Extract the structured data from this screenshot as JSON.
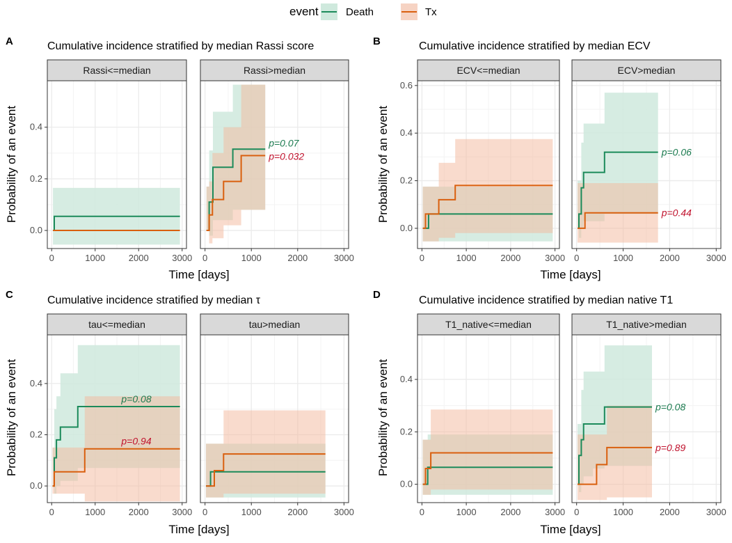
{
  "legend": {
    "title": "event",
    "items": [
      {
        "name": "Death",
        "color": "#1b8a5a",
        "fill": "#cfe9dd"
      },
      {
        "name": "Tx",
        "color": "#d95f0e",
        "fill": "#f6d3c3"
      }
    ]
  },
  "colors": {
    "death_line": "#1b8a5a",
    "tx_line": "#d95f0e",
    "death_p": "#1b7a4f",
    "tx_p": "#c0122d",
    "strip": "#d9d9d9",
    "grid": "#ebebeb"
  },
  "chart_data": [
    {
      "type": "line",
      "label": "A",
      "title": "Cumulative incidence stratified by median Rassi score",
      "xlabel": "Time [days]",
      "ylabel": "Probability of an event",
      "xlim": [
        -100,
        3100
      ],
      "ylim": [
        -0.07,
        0.58
      ],
      "xticks": [
        0,
        1000,
        2000,
        3000
      ],
      "yticks": [
        0.0,
        0.2,
        0.4
      ],
      "facets": [
        {
          "strip": "Rassi<=median",
          "death": {
            "x": [
              30,
              60,
              2950
            ],
            "y": [
              0,
              0.055,
              0.055
            ],
            "lo": [
              -0.055,
              -0.055,
              -0.055
            ],
            "hi": [
              0.165,
              0.165,
              0.165
            ]
          },
          "tx": {
            "x": [
              30,
              2950
            ],
            "y": [
              0,
              0
            ],
            "lo": [
              0,
              0
            ],
            "hi": [
              0,
              0
            ]
          }
        },
        {
          "strip": "Rassi>median",
          "death": {
            "x": [
              30,
              90,
              140,
              170,
              600,
              1300
            ],
            "y": [
              0,
              0.11,
              0.11,
              0.245,
              0.315,
              0.315
            ],
            "lo": [
              0,
              -0.02,
              -0.02,
              0.04,
              0.08,
              0.08
            ],
            "hi": [
              0.17,
              0.31,
              0.31,
              0.46,
              0.565,
              0.565
            ]
          },
          "tx": {
            "x": [
              30,
              90,
              160,
              400,
              780,
              1300
            ],
            "y": [
              0,
              0.06,
              0.12,
              0.19,
              0.29,
              0.29
            ],
            "lo": [
              0,
              -0.05,
              -0.03,
              0.02,
              0.08,
              0.08
            ],
            "hi": [
              0.17,
              0.19,
              0.3,
              0.4,
              0.565,
              0.565
            ]
          },
          "pvals": {
            "death": "p=0.07",
            "tx": "p=0.032"
          }
        }
      ]
    },
    {
      "type": "line",
      "label": "B",
      "title": "Cumulative incidence stratified by median ECV",
      "xlabel": "Time [days]",
      "ylabel": "Probability of an event",
      "xlim": [
        -100,
        3100
      ],
      "ylim": [
        -0.085,
        0.62
      ],
      "xticks": [
        0,
        1000,
        2000,
        3000
      ],
      "yticks": [
        0.0,
        0.2,
        0.4,
        0.6
      ],
      "facets": [
        {
          "strip": "ECV<=median",
          "death": {
            "x": [
              20,
              150,
              2950
            ],
            "y": [
              0,
              0.06,
              0.06
            ],
            "lo": [
              -0.055,
              -0.055,
              -0.055
            ],
            "hi": [
              0.175,
              0.175,
              0.175
            ]
          },
          "tx": {
            "x": [
              20,
              80,
              380,
              750,
              2950
            ],
            "y": [
              0,
              0.06,
              0.12,
              0.18,
              0.18
            ],
            "lo": [
              -0.055,
              -0.055,
              -0.04,
              -0.02,
              -0.02
            ],
            "hi": [
              0.175,
              0.175,
              0.275,
              0.375,
              0.375
            ]
          }
        },
        {
          "strip": "ECV>median",
          "death": {
            "x": [
              20,
              50,
              100,
              150,
              600,
              1750
            ],
            "y": [
              0,
              0.06,
              0.17,
              0.235,
              0.32,
              0.32
            ],
            "lo": [
              0,
              -0.04,
              0.0,
              0.03,
              0.06,
              0.06
            ],
            "hi": [
              0.2,
              0.2,
              0.36,
              0.44,
              0.57,
              0.57
            ]
          },
          "tx": {
            "x": [
              20,
              180,
              1750
            ],
            "y": [
              0,
              0.065,
              0.065
            ],
            "lo": [
              -0.06,
              -0.06,
              -0.06
            ],
            "hi": [
              0.19,
              0.19,
              0.19
            ]
          },
          "pvals": {
            "death": "p=0.06",
            "tx": "p=0.44"
          }
        }
      ]
    },
    {
      "type": "line",
      "label": "C",
      "title": "Cumulative incidence stratified by median τ",
      "xlabel": "Time [days]",
      "ylabel": "Probability of an event",
      "xlim": [
        -100,
        3100
      ],
      "ylim": [
        -0.065,
        0.59
      ],
      "xticks": [
        0,
        1000,
        2000,
        3000
      ],
      "yticks": [
        0.0,
        0.2,
        0.4
      ],
      "facets": [
        {
          "strip": "tau<=median",
          "death": {
            "x": [
              20,
              60,
              110,
              200,
              600,
              2950
            ],
            "y": [
              0,
              0.11,
              0.18,
              0.23,
              0.31,
              0.31
            ],
            "lo": [
              0,
              -0.03,
              0.0,
              0.02,
              0.07,
              0.07
            ],
            "hi": [
              0.15,
              0.3,
              0.35,
              0.44,
              0.55,
              0.55
            ]
          },
          "tx": {
            "x": [
              20,
              60,
              760,
              2950
            ],
            "y": [
              0,
              0.055,
              0.145,
              0.145
            ],
            "lo": [
              -0.03,
              -0.03,
              -0.06,
              -0.06
            ],
            "hi": [
              0.15,
              0.15,
              0.35,
              0.35
            ]
          },
          "pvals": {
            "death": "p=0.08",
            "tx": "p=0.94"
          }
        },
        {
          "strip": "tau>median",
          "death": {
            "x": [
              20,
              120,
              2600
            ],
            "y": [
              0,
              0.055,
              0.055
            ],
            "lo": [
              -0.045,
              -0.045,
              -0.045
            ],
            "hi": [
              0.165,
              0.165,
              0.165
            ]
          },
          "tx": {
            "x": [
              20,
              200,
              400,
              2600
            ],
            "y": [
              0,
              0.06,
              0.125,
              0.125
            ],
            "lo": [
              -0.045,
              -0.045,
              -0.03,
              -0.03
            ],
            "hi": [
              0.165,
              0.165,
              0.295,
              0.295
            ]
          }
        }
      ]
    },
    {
      "type": "line",
      "label": "D",
      "title": "Cumulative incidence stratified by median native T1",
      "xlabel": "Time [days]",
      "ylabel": "Probability of an event",
      "xlim": [
        -100,
        3100
      ],
      "ylim": [
        -0.07,
        0.57
      ],
      "xticks": [
        0,
        1000,
        2000,
        3000
      ],
      "yticks": [
        0.0,
        0.2,
        0.4
      ],
      "facets": [
        {
          "strip": "T1_native<=median",
          "death": {
            "x": [
              20,
              130,
              2950
            ],
            "y": [
              0,
              0.065,
              0.065
            ],
            "lo": [
              -0.04,
              -0.04,
              -0.04
            ],
            "hi": [
              0.17,
              0.19,
              0.19
            ]
          },
          "tx": {
            "x": [
              20,
              80,
              200,
              2950
            ],
            "y": [
              0,
              0.06,
              0.12,
              0.12
            ],
            "lo": [
              -0.04,
              -0.04,
              -0.02,
              -0.02
            ],
            "hi": [
              0.17,
              0.17,
              0.285,
              0.285
            ]
          }
        },
        {
          "strip": "T1_native>median",
          "death": {
            "x": [
              20,
              50,
              100,
              150,
              350,
              600,
              1620
            ],
            "y": [
              0,
              0.11,
              0.17,
              0.23,
              0.23,
              0.295,
              0.295
            ],
            "lo": [
              0,
              -0.03,
              0.0,
              0.03,
              0.06,
              0.07,
              0.07
            ],
            "hi": [
              0.23,
              0.23,
              0.36,
              0.43,
              0.43,
              0.53,
              0.53
            ]
          },
          "tx": {
            "x": [
              20,
              430,
              650,
              1620
            ],
            "y": [
              0,
              0.075,
              0.14,
              0.14
            ],
            "lo": [
              -0.06,
              -0.06,
              -0.05,
              -0.05
            ],
            "hi": [
              0.19,
              0.19,
              0.3,
              0.3
            ]
          },
          "pvals": {
            "death": "p=0.08",
            "tx": "p=0.89"
          }
        }
      ]
    }
  ]
}
